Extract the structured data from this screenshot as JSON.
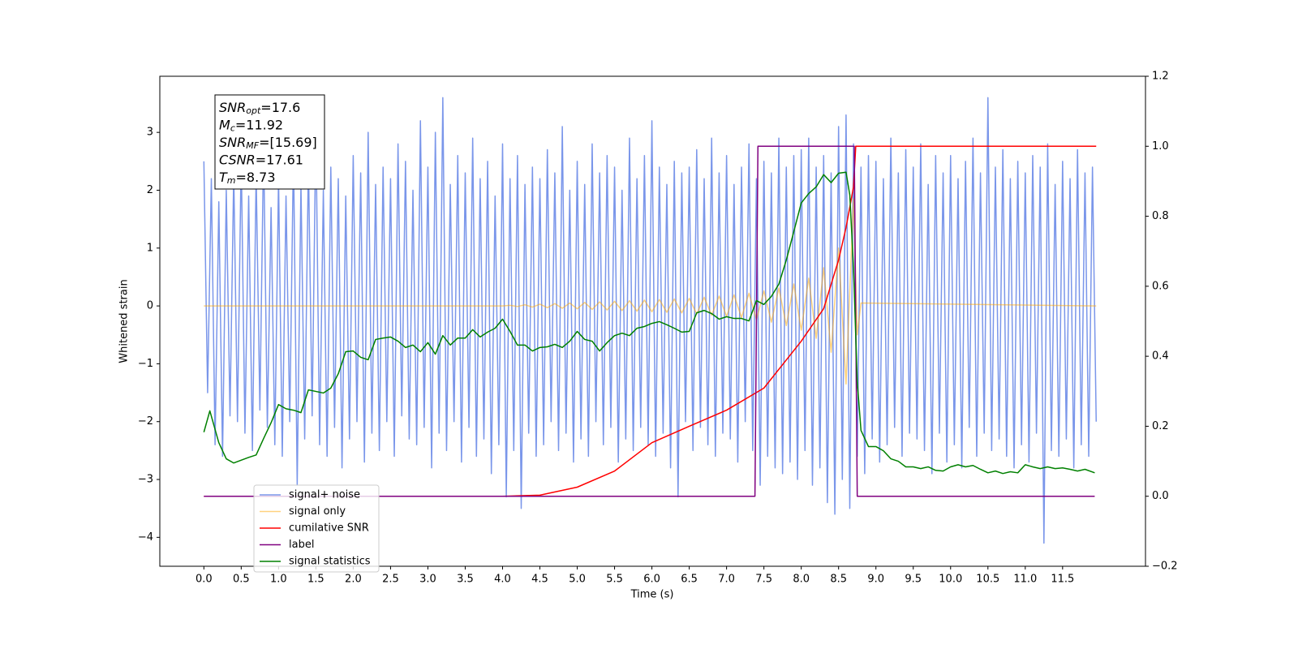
{
  "chart_data": {
    "type": "line",
    "xlabel": "Time (s)",
    "ylabel": "Whitened strain",
    "xlim": [
      -0.59,
      12.61
    ],
    "ylim": [
      -4.5,
      3.97
    ],
    "y2lim": [
      -0.2,
      1.2
    ],
    "xticks": [
      {
        "value": 0,
        "label": "0.0"
      },
      0.5,
      {
        "value": 1,
        "label": "1.0"
      },
      1.5,
      {
        "value": 2,
        "label": "2.0"
      },
      2.5,
      {
        "value": 3,
        "label": "3.0"
      },
      3.5,
      {
        "value": 4,
        "label": "4.0"
      },
      4.5,
      {
        "value": 5,
        "label": "5.0"
      },
      5.5,
      {
        "value": 6,
        "label": "6.0"
      },
      6.5,
      {
        "value": 7,
        "label": "7.0"
      },
      7.5,
      {
        "value": 8,
        "label": "8.0"
      },
      8.5,
      {
        "value": 9,
        "label": "9.0"
      },
      9.5,
      {
        "value": 10,
        "label": "10.0"
      },
      10.5,
      {
        "value": 11,
        "label": "11.0"
      },
      11.5
    ],
    "yticks": [
      {
        "value": -4,
        "label": "−4"
      },
      {
        "value": -3,
        "label": "−3"
      },
      {
        "value": -2,
        "label": "−2"
      },
      {
        "value": -1,
        "label": "−1"
      },
      0,
      1,
      2,
      3
    ],
    "y2ticks": [
      {
        "value": -0.2,
        "label": "−0.2"
      },
      {
        "value": 0,
        "label": "0.0"
      },
      0.2,
      0.4,
      0.6,
      0.8,
      {
        "value": 1,
        "label": "1.0"
      },
      1.2
    ],
    "grid": false,
    "legend": "lower left",
    "annotation": [
      {
        "main": "SNR",
        "sub": "opt",
        "value": "=17.6"
      },
      {
        "main": "M",
        "sub": "c",
        "value": "=11.92"
      },
      {
        "main": "SNR",
        "sub": "MF",
        "value": "=[15.69]"
      },
      {
        "main": "CSNR",
        "value": "=17.61"
      },
      {
        "main": "T",
        "sub": "m",
        "value": "=8.73"
      }
    ],
    "series": [
      {
        "name": "signal+ noise",
        "color": "#4169e1",
        "alpha": 0.7,
        "x": [
          0,
          0.05,
          0.1,
          0.15,
          0.2,
          0.25,
          0.3,
          0.35,
          0.4,
          0.45,
          0.5,
          0.55,
          0.6,
          0.65,
          0.7,
          0.75,
          0.8,
          0.85,
          0.9,
          0.95,
          1,
          1.05,
          1.1,
          1.15,
          1.2,
          1.25,
          1.3,
          1.35,
          1.4,
          1.45,
          1.5,
          1.55,
          1.6,
          1.65,
          1.7,
          1.75,
          1.8,
          1.85,
          1.9,
          1.95,
          2,
          2.05,
          2.1,
          2.15,
          2.2,
          2.25,
          2.3,
          2.35,
          2.4,
          2.45,
          2.5,
          2.55,
          2.6,
          2.65,
          2.7,
          2.75,
          2.8,
          2.85,
          2.9,
          2.95,
          3,
          3.05,
          3.1,
          3.15,
          3.2,
          3.25,
          3.3,
          3.35,
          3.4,
          3.45,
          3.5,
          3.55,
          3.6,
          3.65,
          3.7,
          3.75,
          3.8,
          3.85,
          3.9,
          3.95,
          4,
          4.05,
          4.1,
          4.15,
          4.2,
          4.25,
          4.3,
          4.35,
          4.4,
          4.45,
          4.5,
          4.55,
          4.6,
          4.65,
          4.7,
          4.75,
          4.8,
          4.85,
          4.9,
          4.95,
          5,
          5.05,
          5.1,
          5.15,
          5.2,
          5.25,
          5.3,
          5.35,
          5.4,
          5.45,
          5.5,
          5.55,
          5.6,
          5.65,
          5.7,
          5.75,
          5.8,
          5.85,
          5.9,
          5.95,
          6,
          6.05,
          6.1,
          6.15,
          6.2,
          6.25,
          6.3,
          6.35,
          6.4,
          6.45,
          6.5,
          6.55,
          6.6,
          6.65,
          6.7,
          6.75,
          6.8,
          6.85,
          6.9,
          6.95,
          7,
          7.05,
          7.1,
          7.15,
          7.2,
          7.25,
          7.3,
          7.35,
          7.4,
          7.45,
          7.5,
          7.55,
          7.6,
          7.65,
          7.7,
          7.75,
          7.8,
          7.85,
          7.9,
          7.95,
          8,
          8.05,
          8.1,
          8.15,
          8.2,
          8.25,
          8.3,
          8.35,
          8.4,
          8.45,
          8.5,
          8.55,
          8.6,
          8.65,
          8.7,
          8.75,
          8.8,
          8.85,
          8.9,
          8.95,
          9,
          9.05,
          9.1,
          9.15,
          9.2,
          9.25,
          9.3,
          9.35,
          9.4,
          9.45,
          9.5,
          9.55,
          9.6,
          9.65,
          9.7,
          9.75,
          9.8,
          9.85,
          9.9,
          9.95,
          10,
          10.05,
          10.1,
          10.15,
          10.2,
          10.25,
          10.3,
          10.35,
          10.4,
          10.45,
          10.5,
          10.55,
          10.6,
          10.65,
          10.7,
          10.75,
          10.8,
          10.85,
          10.9,
          10.95,
          11,
          11.05,
          11.1,
          11.15,
          11.2,
          11.25,
          11.3,
          11.35,
          11.4,
          11.45,
          11.5,
          11.55,
          11.6,
          11.65,
          11.7,
          11.75,
          11.8,
          11.85,
          11.9,
          11.95
        ],
        "values": [
          2.5,
          -1.5,
          2.2,
          -2.4,
          1.8,
          -2.6,
          2.0,
          -1.9,
          2.3,
          -2.0,
          2.6,
          -2.2,
          1.9,
          -2.5,
          2.3,
          -1.8,
          2.8,
          -2.1,
          1.7,
          -2.4,
          2.2,
          -2.6,
          1.9,
          -2.0,
          2.7,
          -3.1,
          2.1,
          -2.3,
          2.5,
          -1.9,
          3.1,
          -2.4,
          2.0,
          -2.6,
          2.4,
          -2.1,
          2.2,
          -2.8,
          1.9,
          -2.3,
          2.6,
          -2.0,
          2.3,
          -2.7,
          3.0,
          -2.2,
          2.1,
          -2.5,
          2.4,
          -2.0,
          2.2,
          -2.6,
          2.8,
          -1.9,
          2.5,
          -2.3,
          2.0,
          -2.4,
          3.2,
          -2.1,
          2.4,
          -2.8,
          3.0,
          -2.2,
          3.6,
          -2.5,
          2.1,
          -2.0,
          2.6,
          -2.7,
          2.3,
          -2.1,
          2.9,
          -2.6,
          2.2,
          -2.3,
          2.5,
          -2.9,
          1.9,
          -2.4,
          2.8,
          -3.3,
          2.2,
          -2.5,
          2.6,
          -3.5,
          2.1,
          -2.2,
          2.4,
          -2.6,
          2.2,
          -2.4,
          2.7,
          -2.0,
          2.3,
          -2.5,
          3.1,
          -2.2,
          2.0,
          -2.7,
          2.5,
          -2.3,
          2.1,
          -2.6,
          2.8,
          -2.0,
          2.3,
          -2.4,
          2.6,
          -2.1,
          2.4,
          -2.7,
          2.0,
          -2.3,
          2.9,
          -2.5,
          2.2,
          -2.1,
          2.6,
          -2.4,
          3.2,
          -2.6,
          2.4,
          -2.2,
          2.1,
          -2.8,
          2.5,
          -3.3,
          2.3,
          -2.0,
          2.4,
          -2.5,
          2.7,
          -2.1,
          2.2,
          -2.4,
          2.9,
          -2.6,
          2.3,
          -2.2,
          2.6,
          -2.3,
          2.1,
          -2.7,
          2.4,
          -2.0,
          2.8,
          -2.5,
          2.2,
          -3.1,
          2.5,
          -2.6,
          2.3,
          -2.8,
          2.9,
          -2.9,
          2.4,
          -2.7,
          2.6,
          -3.0,
          2.7,
          -2.5,
          2.9,
          -3.1,
          2.4,
          -2.8,
          2.6,
          -3.4,
          2.3,
          -3.6,
          3.1,
          -3.0,
          3.3,
          -3.5,
          2.8,
          -2.6,
          2.4,
          -2.9,
          2.6,
          -2.3,
          2.5,
          -2.7,
          2.2,
          -2.4,
          2.9,
          -2.1,
          2.3,
          -2.6,
          2.7,
          -2.2,
          2.4,
          -2.3,
          2.8,
          -2.5,
          2.1,
          -2.9,
          2.6,
          -2.2,
          2.3,
          -2.7,
          2.6,
          -2.4,
          2.2,
          -2.8,
          2.5,
          -2.1,
          2.9,
          -2.6,
          2.3,
          -2.2,
          3.6,
          -2.5,
          2.4,
          -2.3,
          2.7,
          -2.6,
          2.2,
          -2.8,
          2.5,
          -2.4,
          2.3,
          -2.7,
          2.6,
          -2.2,
          2.4,
          -4.1,
          2.8,
          -2.5,
          2.1,
          -2.6,
          2.5,
          -2.3,
          2.2,
          -2.8,
          2.7,
          -2.4,
          2.3,
          -2.6,
          2.4,
          -2.0
        ]
      },
      {
        "name": "signal only",
        "color": "#ffa500",
        "alpha": 0.5,
        "x": [
          0,
          4.0,
          4.1,
          4.2,
          4.3,
          4.4,
          4.5,
          4.6,
          4.7,
          4.8,
          4.9,
          5.0,
          5.1,
          5.2,
          5.3,
          5.4,
          5.5,
          5.6,
          5.7,
          5.8,
          5.9,
          6.0,
          6.1,
          6.2,
          6.3,
          6.4,
          6.5,
          6.6,
          6.7,
          6.8,
          6.9,
          7.0,
          7.1,
          7.2,
          7.3,
          7.4,
          7.5,
          7.6,
          7.7,
          7.8,
          7.9,
          8.0,
          8.1,
          8.2,
          8.3,
          8.4,
          8.5,
          8.6,
          8.7,
          8.75,
          8.8,
          11.95
        ],
        "values": [
          0,
          0,
          0.01,
          -0.01,
          0.02,
          -0.02,
          0.03,
          -0.03,
          0.04,
          -0.04,
          0.05,
          -0.05,
          0.06,
          -0.06,
          0.07,
          -0.07,
          0.08,
          -0.08,
          0.09,
          -0.09,
          0.1,
          -0.1,
          0.11,
          -0.11,
          0.12,
          -0.12,
          0.13,
          -0.14,
          0.15,
          -0.16,
          0.17,
          -0.18,
          0.19,
          -0.2,
          0.22,
          -0.24,
          0.26,
          -0.28,
          0.31,
          -0.34,
          0.38,
          -0.42,
          0.48,
          -0.56,
          0.66,
          -0.8,
          1.0,
          -1.35,
          1.85,
          -0.5,
          0.05,
          0
        ]
      },
      {
        "name": "cumilative SNR",
        "color": "#ff0000",
        "axis": "y2",
        "x": [
          0,
          4.0,
          4.5,
          5.0,
          5.5,
          6.0,
          6.5,
          7.0,
          7.5,
          8.0,
          8.3,
          8.5,
          8.6,
          8.7,
          8.73,
          11.95
        ],
        "values": [
          0,
          0,
          0.003,
          0.026,
          0.072,
          0.153,
          0.2,
          0.246,
          0.309,
          0.443,
          0.536,
          0.675,
          0.768,
          0.884,
          1.0,
          1.0
        ]
      },
      {
        "name": "label",
        "color": "#800080",
        "axis": "y2",
        "x": [
          0,
          7.38,
          7.42,
          8.71,
          8.75,
          11.93
        ],
        "values": [
          0,
          0,
          1,
          1,
          0,
          0
        ]
      },
      {
        "name": "signal statistics",
        "color": "#008000",
        "axis": "y2",
        "x": [
          0,
          0.08,
          0.2,
          0.3,
          0.4,
          0.6,
          0.7,
          0.8,
          0.9,
          1.0,
          1.1,
          1.2,
          1.3,
          1.4,
          1.6,
          1.7,
          1.8,
          1.9,
          2.0,
          2.1,
          2.2,
          2.3,
          2.4,
          2.5,
          2.6,
          2.7,
          2.8,
          2.9,
          3.0,
          3.1,
          3.2,
          3.3,
          3.4,
          3.5,
          3.6,
          3.7,
          3.8,
          3.9,
          4.0,
          4.1,
          4.2,
          4.3,
          4.4,
          4.5,
          4.6,
          4.7,
          4.8,
          4.9,
          5.0,
          5.1,
          5.2,
          5.3,
          5.4,
          5.5,
          5.6,
          5.7,
          5.8,
          5.9,
          6.0,
          6.1,
          6.2,
          6.3,
          6.4,
          6.5,
          6.6,
          6.7,
          6.8,
          6.9,
          7.0,
          7.1,
          7.2,
          7.3,
          7.4,
          7.5,
          7.6,
          7.7,
          7.8,
          7.9,
          8.0,
          8.1,
          8.2,
          8.3,
          8.4,
          8.5,
          8.6,
          8.65,
          8.7,
          8.75,
          8.8,
          8.9,
          9.0,
          9.1,
          9.2,
          9.3,
          9.4,
          9.5,
          9.6,
          9.7,
          9.8,
          9.9,
          10.0,
          10.1,
          10.2,
          10.3,
          10.4,
          10.5,
          10.6,
          10.7,
          10.8,
          10.9,
          11.0,
          11.1,
          11.2,
          11.3,
          11.4,
          11.5,
          11.6,
          11.7,
          11.8,
          11.93
        ],
        "values": [
          0.183,
          0.244,
          0.153,
          0.107,
          0.095,
          0.111,
          0.118,
          0.165,
          0.21,
          0.262,
          0.25,
          0.246,
          0.239,
          0.304,
          0.295,
          0.309,
          0.35,
          0.413,
          0.415,
          0.397,
          0.39,
          0.448,
          0.452,
          0.455,
          0.443,
          0.425,
          0.432,
          0.413,
          0.439,
          0.406,
          0.459,
          0.432,
          0.452,
          0.452,
          0.476,
          0.455,
          0.469,
          0.48,
          0.506,
          0.471,
          0.432,
          0.432,
          0.415,
          0.425,
          0.427,
          0.434,
          0.425,
          0.443,
          0.471,
          0.448,
          0.443,
          0.415,
          0.439,
          0.459,
          0.466,
          0.459,
          0.48,
          0.485,
          0.494,
          0.499,
          0.49,
          0.48,
          0.469,
          0.471,
          0.524,
          0.531,
          0.522,
          0.506,
          0.513,
          0.508,
          0.508,
          0.501,
          0.559,
          0.548,
          0.571,
          0.606,
          0.675,
          0.756,
          0.838,
          0.865,
          0.884,
          0.919,
          0.896,
          0.923,
          0.926,
          0.861,
          0.652,
          0.327,
          0.188,
          0.142,
          0.142,
          0.13,
          0.107,
          0.1,
          0.084,
          0.084,
          0.079,
          0.084,
          0.074,
          0.072,
          0.084,
          0.09,
          0.084,
          0.088,
          0.077,
          0.067,
          0.072,
          0.065,
          0.07,
          0.067,
          0.09,
          0.084,
          0.079,
          0.084,
          0.079,
          0.081,
          0.077,
          0.072,
          0.077,
          0.067
        ]
      }
    ]
  }
}
